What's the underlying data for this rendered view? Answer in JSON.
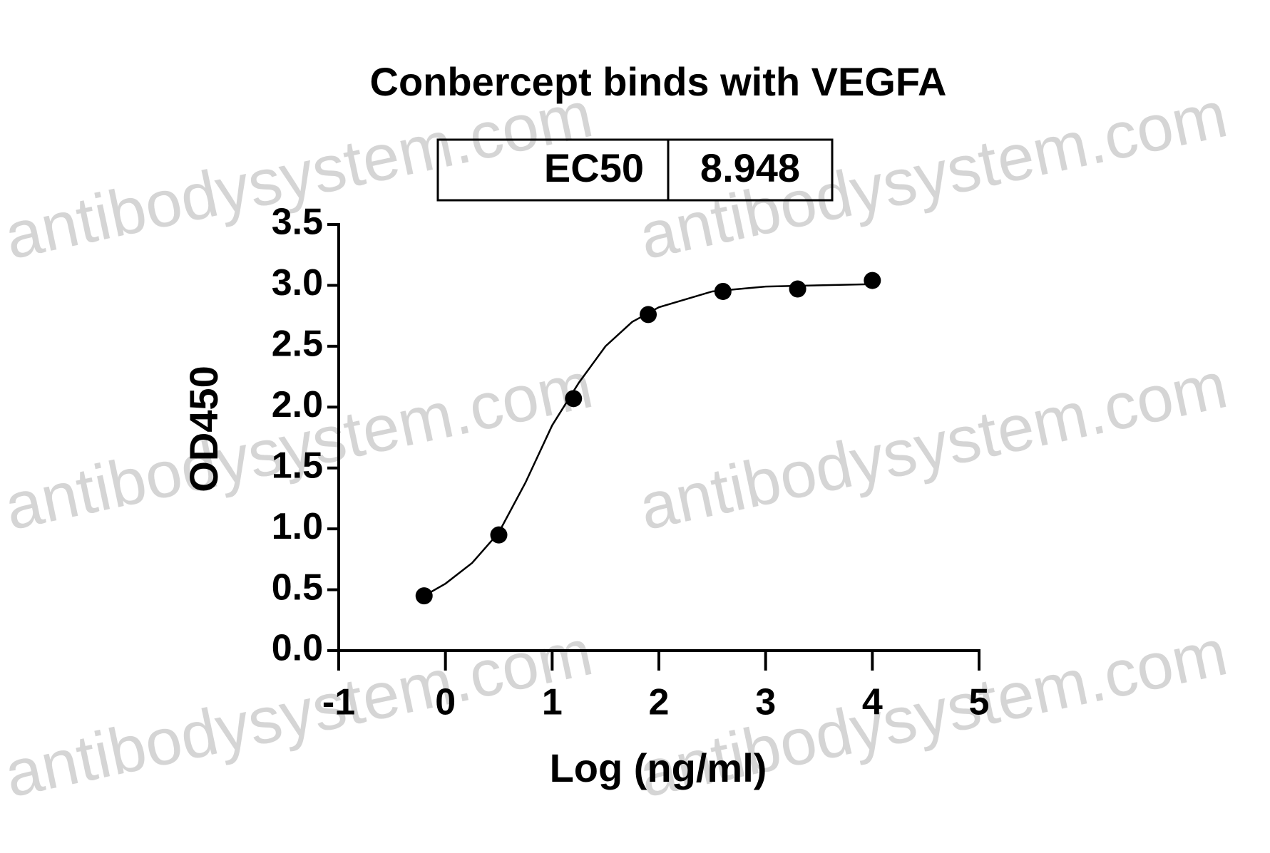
{
  "chart_data": {
    "type": "scatter",
    "title": "Conbercept binds with VEGFA",
    "ec50_label": "EC50",
    "ec50_value": "8.948",
    "x_label": "Log (ng/ml)",
    "y_label": "OD450",
    "watermark": "antibodysystem.com",
    "xlim": [
      -1,
      5
    ],
    "xticks": [
      -1,
      0,
      1,
      2,
      3,
      4,
      5
    ],
    "ylim": [
      0,
      3.5
    ],
    "yticks": [
      {
        "value": 0,
        "label": "0.0"
      },
      0.5,
      {
        "value": 1,
        "label": "1.0"
      },
      1.5,
      {
        "value": 2,
        "label": "2.0"
      },
      2.5,
      {
        "value": 3,
        "label": "3.0"
      },
      3.5
    ],
    "color": "#000000",
    "x": [
      -0.2,
      0.5,
      1.2,
      1.9,
      2.6,
      3.3,
      4.0
    ],
    "values": [
      0.45,
      0.95,
      2.07,
      2.76,
      2.95,
      2.97,
      3.04
    ],
    "fit": {
      "x": [
        -0.2,
        0,
        0.25,
        0.5,
        0.75,
        1.0,
        1.25,
        1.5,
        1.75,
        2.0,
        2.5,
        3.0,
        3.5,
        4.0
      ],
      "values": [
        0.45,
        0.55,
        0.72,
        0.97,
        1.38,
        1.85,
        2.2,
        2.5,
        2.7,
        2.82,
        2.95,
        2.99,
        3.0,
        3.01
      ]
    }
  }
}
